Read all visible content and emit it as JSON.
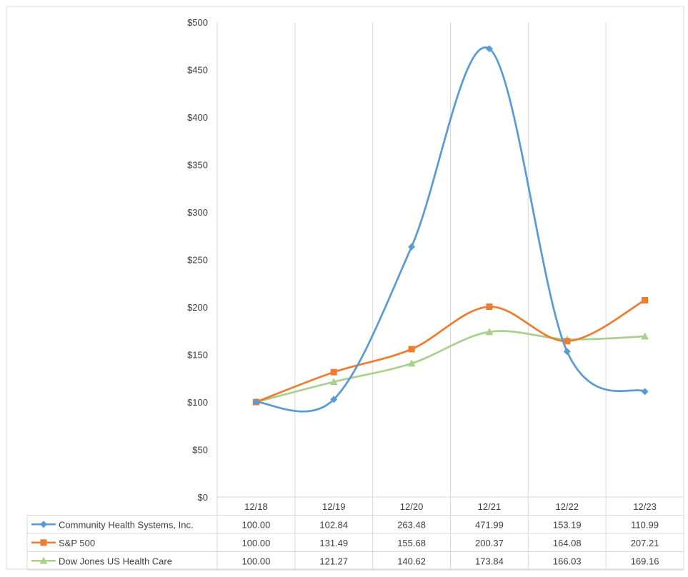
{
  "chart_data": {
    "type": "line",
    "categories": [
      "12/18",
      "12/19",
      "12/20",
      "12/21",
      "12/22",
      "12/23"
    ],
    "ylim": [
      0,
      500
    ],
    "ytick_labels": [
      "$0",
      "$50",
      "$100",
      "$150",
      "$200",
      "$250",
      "$300",
      "$350",
      "$400",
      "$450",
      "$500"
    ],
    "grid": "vertical",
    "legend": "data-table-below",
    "series": [
      {
        "name": "Community Health Systems, Inc.",
        "values": [
          100.0,
          102.84,
          263.48,
          471.99,
          153.19,
          110.99
        ],
        "labels": [
          "100.00",
          "102.84",
          "263.48",
          "471.99",
          "153.19",
          "110.99"
        ],
        "color": "#5b9bd5",
        "marker": "diamond"
      },
      {
        "name": "S&P 500",
        "values": [
          100.0,
          131.49,
          155.68,
          200.37,
          164.08,
          207.21
        ],
        "labels": [
          "100.00",
          "131.49",
          "155.68",
          "200.37",
          "164.08",
          "207.21"
        ],
        "color": "#ed7d31",
        "marker": "square"
      },
      {
        "name": "Dow Jones US Health Care",
        "values": [
          100.0,
          121.27,
          140.62,
          173.84,
          166.03,
          169.16
        ],
        "labels": [
          "100.00",
          "121.27",
          "140.62",
          "173.84",
          "166.03",
          "169.16"
        ],
        "color": "#a9d18e",
        "marker": "triangle"
      }
    ]
  }
}
